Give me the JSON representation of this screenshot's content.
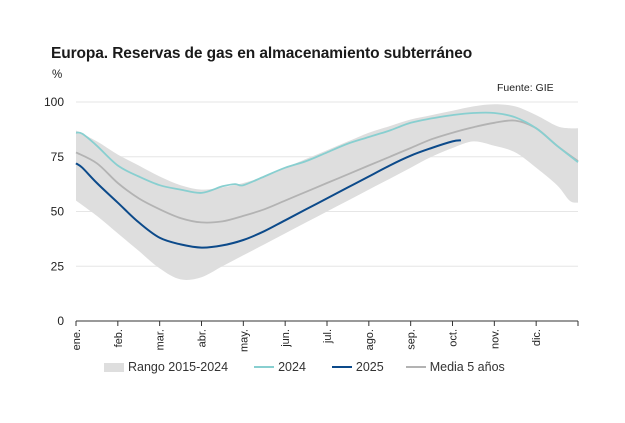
{
  "colors": {
    "band": "#dedede",
    "y2024": "#88cfd0",
    "y2025": "#0c4a8a",
    "avg5": "#b3b3b3"
  },
  "chart_data": {
    "type": "line",
    "title": "Europa. Reservas de gas en almacenamiento subterráneo",
    "source": "Fuente: GIE",
    "ylabel": "%",
    "ylim": [
      0,
      100
    ],
    "yticks": [
      "0",
      "25",
      "50",
      "75",
      "100"
    ],
    "xlim": [
      0,
      12
    ],
    "categories": [
      "ene.",
      "feb.",
      "mar.",
      "abr.",
      "may.",
      "jun.",
      "jul.",
      "ago.",
      "sep.",
      "oct.",
      "nov.",
      "dic."
    ],
    "band": {
      "name": "Rango 2015-2024",
      "x": [
        0,
        0.5,
        1,
        1.5,
        2,
        2.5,
        3,
        3.5,
        4,
        4.5,
        5,
        5.5,
        6,
        6.5,
        7,
        7.5,
        8,
        8.5,
        9,
        9.5,
        10,
        10.5,
        11,
        11.5,
        11.8,
        12
      ],
      "upper": [
        87,
        82,
        76,
        71,
        66,
        62,
        60,
        61,
        63,
        66,
        70,
        74,
        78,
        82,
        86,
        89,
        92,
        94,
        96,
        98,
        99,
        98,
        94,
        89,
        88,
        88
      ],
      "lower": [
        55,
        48,
        40,
        32,
        24,
        19,
        20,
        25,
        30,
        35,
        40,
        45,
        50,
        55,
        60,
        65,
        70,
        75,
        79,
        82,
        80,
        77,
        70,
        62,
        55,
        54
      ]
    },
    "series": [
      {
        "name": "2024",
        "x": [
          0,
          0.15,
          0.5,
          1,
          1.5,
          2,
          2.5,
          3,
          3.5,
          3.8,
          4,
          4.5,
          5,
          5.5,
          6,
          6.5,
          7,
          7.5,
          8,
          8.5,
          9,
          9.5,
          10,
          10.5,
          11,
          11.5,
          12
        ],
        "values": [
          86,
          85.5,
          80,
          71,
          66,
          62,
          60,
          58.5,
          61.5,
          62.5,
          62,
          66,
          70,
          73,
          77,
          81,
          84,
          87,
          90.5,
          92.5,
          94,
          95,
          95,
          93,
          88,
          80,
          72.5
        ]
      },
      {
        "name": "2025",
        "x": [
          0,
          0.15,
          0.5,
          1,
          1.5,
          2,
          2.5,
          3,
          3.5,
          4,
          4.5,
          5,
          5.5,
          6,
          6.5,
          7,
          7.5,
          8,
          8.5,
          9,
          9.2
        ],
        "values": [
          72,
          70,
          63,
          54,
          45,
          38,
          35,
          33.5,
          34.5,
          37,
          41,
          46,
          51,
          56,
          61,
          66,
          71,
          75.5,
          79,
          82,
          82.5
        ]
      },
      {
        "name": "Media 5 años",
        "x": [
          0,
          0.5,
          1,
          1.5,
          2,
          2.5,
          3,
          3.5,
          4,
          4.5,
          5,
          5.5,
          6,
          6.5,
          7,
          7.5,
          8,
          8.5,
          9,
          9.5,
          10,
          10.5,
          11,
          11.5,
          12
        ],
        "values": [
          77,
          72,
          63,
          56,
          51,
          47,
          45,
          45.5,
          48,
          51,
          55,
          59,
          63,
          67,
          71,
          75,
          79,
          83,
          86,
          88.5,
          90.5,
          91.5,
          88,
          80,
          73
        ]
      }
    ],
    "legend_position": "bottom"
  }
}
